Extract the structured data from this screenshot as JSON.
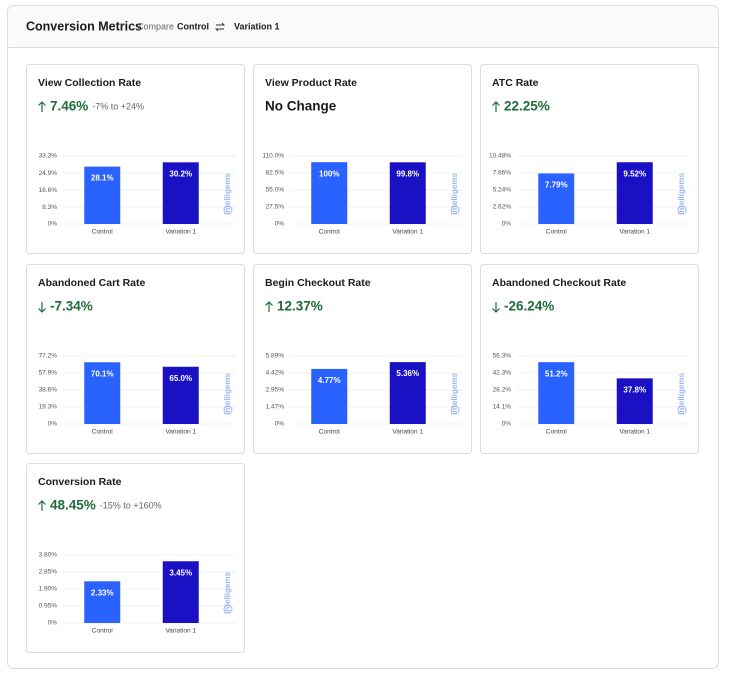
{
  "header": {
    "title": "Conversion Metrics",
    "compare_label": "Compare",
    "control": "Control",
    "variation": "Variation 1"
  },
  "watermark": "intelligems",
  "chart_data": [
    {
      "type": "bar",
      "title": "View Collection Rate",
      "change": "7.46%",
      "direction": "up",
      "range": "-7% to +24%",
      "categories": [
        "Control",
        "Variation 1"
      ],
      "values": [
        28.1,
        30.2
      ],
      "value_labels": [
        "28.1%",
        "30.2%"
      ],
      "colors": [
        "#2962ff",
        "#1a10c4"
      ],
      "ylim": [
        0,
        33.3
      ],
      "yticks": [
        {
          "value": 0,
          "label": "0%"
        },
        {
          "value": 8.3,
          "label": "8.3%"
        },
        {
          "value": 16.6,
          "label": "16.6%"
        },
        {
          "value": 24.9,
          "label": "24.9%"
        },
        {
          "value": 33.3,
          "label": "33.3%"
        }
      ],
      "grid": true
    },
    {
      "type": "bar",
      "title": "View Product Rate",
      "change": "No Change",
      "categories": [
        "Control",
        "Variation 1"
      ],
      "values": [
        100,
        99.8
      ],
      "value_labels": [
        "100%",
        "99.8%"
      ],
      "colors": [
        "#2962ff",
        "#1a10c4"
      ],
      "ylim": [
        0,
        110
      ],
      "yticks": [
        {
          "value": 0,
          "label": "0%"
        },
        {
          "value": 27.5,
          "label": "27.5%"
        },
        {
          "value": 55,
          "label": "55.0%"
        },
        {
          "value": 82.5,
          "label": "82.5%"
        },
        {
          "value": 110,
          "label": "110.0%"
        }
      ],
      "grid": true
    },
    {
      "type": "bar",
      "title": "ATC Rate",
      "change": "22.25%",
      "direction": "up",
      "categories": [
        "Control",
        "Variation 1"
      ],
      "values": [
        7.79,
        9.52
      ],
      "value_labels": [
        "7.79%",
        "9.52%"
      ],
      "colors": [
        "#2962ff",
        "#1a10c4"
      ],
      "ylim": [
        0,
        10.48
      ],
      "yticks": [
        {
          "value": 0,
          "label": "0%"
        },
        {
          "value": 2.62,
          "label": "2.62%"
        },
        {
          "value": 5.24,
          "label": "5.24%"
        },
        {
          "value": 7.86,
          "label": "7.86%"
        },
        {
          "value": 10.48,
          "label": "10.48%"
        }
      ],
      "grid": true
    },
    {
      "type": "bar",
      "title": "Abandoned Cart Rate",
      "change": "-7.34%",
      "direction": "down",
      "categories": [
        "Control",
        "Variation 1"
      ],
      "values": [
        70.1,
        65.0
      ],
      "value_labels": [
        "70.1%",
        "65.0%"
      ],
      "colors": [
        "#2962ff",
        "#1a10c4"
      ],
      "ylim": [
        0,
        77.2
      ],
      "yticks": [
        {
          "value": 0,
          "label": "0%"
        },
        {
          "value": 19.3,
          "label": "19.3%"
        },
        {
          "value": 38.6,
          "label": "38.6%"
        },
        {
          "value": 57.9,
          "label": "57.9%"
        },
        {
          "value": 77.2,
          "label": "77.2%"
        }
      ],
      "grid": true
    },
    {
      "type": "bar",
      "title": "Begin Checkout Rate",
      "change": "12.37%",
      "direction": "up",
      "categories": [
        "Control",
        "Variation 1"
      ],
      "values": [
        4.77,
        5.36
      ],
      "value_labels": [
        "4.77%",
        "5.36%"
      ],
      "colors": [
        "#2962ff",
        "#1a10c4"
      ],
      "ylim": [
        0,
        5.89
      ],
      "yticks": [
        {
          "value": 0,
          "label": "0%"
        },
        {
          "value": 1.47,
          "label": "1.47%"
        },
        {
          "value": 2.95,
          "label": "2.95%"
        },
        {
          "value": 4.42,
          "label": "4.42%"
        },
        {
          "value": 5.89,
          "label": "5.89%"
        }
      ],
      "grid": true
    },
    {
      "type": "bar",
      "title": "Abandoned Checkout Rate",
      "change": "-26.24%",
      "direction": "down",
      "categories": [
        "Control",
        "Variation 1"
      ],
      "values": [
        51.2,
        37.8
      ],
      "value_labels": [
        "51.2%",
        "37.8%"
      ],
      "colors": [
        "#2962ff",
        "#1a10c4"
      ],
      "ylim": [
        0,
        56.3
      ],
      "yticks": [
        {
          "value": 0,
          "label": "0%"
        },
        {
          "value": 14.1,
          "label": "14.1%"
        },
        {
          "value": 28.2,
          "label": "28.2%"
        },
        {
          "value": 42.3,
          "label": "42.3%"
        },
        {
          "value": 56.3,
          "label": "56.3%"
        }
      ],
      "grid": true
    },
    {
      "type": "bar",
      "title": "Conversion Rate",
      "change": "48.45%",
      "direction": "up",
      "range": "-15% to +160%",
      "categories": [
        "Control",
        "Variation 1"
      ],
      "values": [
        2.33,
        3.45
      ],
      "value_labels": [
        "2.33%",
        "3.45%"
      ],
      "colors": [
        "#2962ff",
        "#1a10c4"
      ],
      "ylim": [
        0,
        3.8
      ],
      "yticks": [
        {
          "value": 0,
          "label": "0%"
        },
        {
          "value": 0.95,
          "label": "0.95%"
        },
        {
          "value": 1.9,
          "label": "1.90%"
        },
        {
          "value": 2.85,
          "label": "2.85%"
        },
        {
          "value": 3.8,
          "label": "3.80%"
        }
      ],
      "grid": true
    }
  ]
}
